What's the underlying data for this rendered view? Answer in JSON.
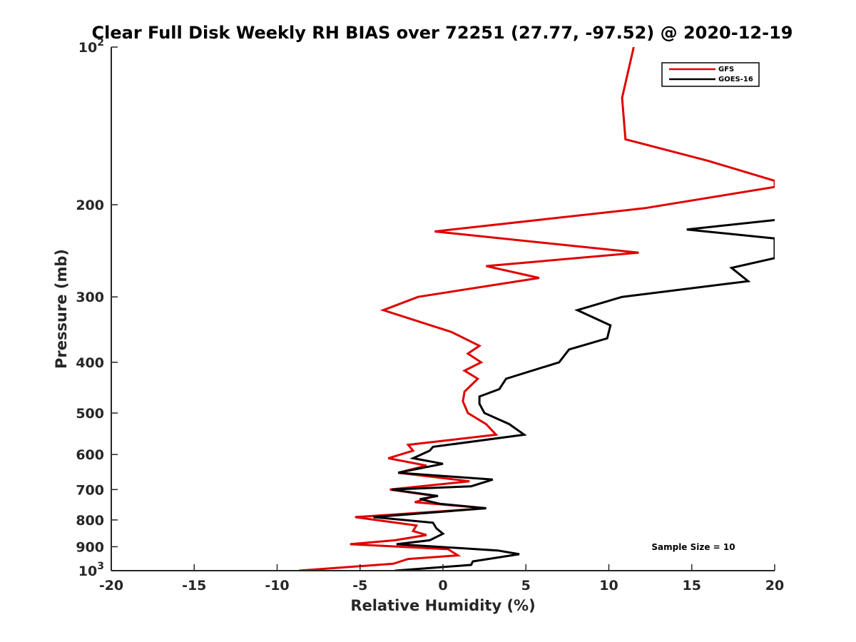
{
  "chart_data": {
    "type": "line",
    "title": "Clear Full Disk Weekly RH BIAS over 72251 (27.77, -97.52) @ 2020-12-19",
    "xlabel": "Relative Humidity (%)",
    "ylabel": "Pressure (mb)",
    "xlim": [
      -20,
      20
    ],
    "ylim": [
      100,
      1000
    ],
    "y_scale": "log",
    "y_reversed": true,
    "x_ticks": [
      -20,
      -15,
      -10,
      -5,
      0,
      5,
      10,
      15,
      20
    ],
    "x_tick_labels": [
      "-20",
      "-15",
      "-10",
      "-5",
      "0",
      "5",
      "10",
      "15",
      "20"
    ],
    "y_ticks": [
      100,
      200,
      300,
      400,
      500,
      600,
      700,
      800,
      900,
      1000
    ],
    "y_tick_labels": [
      {
        "base": "10",
        "exp": "2"
      },
      {
        "base": "200",
        "exp": ""
      },
      {
        "base": "300",
        "exp": ""
      },
      {
        "base": "400",
        "exp": ""
      },
      {
        "base": "500",
        "exp": ""
      },
      {
        "base": "600",
        "exp": ""
      },
      {
        "base": "700",
        "exp": ""
      },
      {
        "base": "800",
        "exp": ""
      },
      {
        "base": "900",
        "exp": ""
      },
      {
        "base": "10",
        "exp": "3"
      }
    ],
    "grid": false,
    "legend_position": "top-right",
    "annotation": "Sample Size = 10",
    "series": [
      {
        "name": "GFS",
        "color": "#e00000",
        "points": [
          [
            11.5,
            100
          ],
          [
            10.8,
            125
          ],
          [
            11.0,
            150
          ],
          [
            16.0,
            165
          ],
          [
            20.0,
            180
          ],
          [
            20.0,
            185
          ],
          [
            12.2,
            203
          ],
          [
            -0.5,
            225
          ],
          [
            11.8,
            247
          ],
          [
            2.6,
            262
          ],
          [
            5.8,
            276
          ],
          [
            -1.5,
            300
          ],
          [
            -3.6,
            318
          ],
          [
            0.5,
            350
          ],
          [
            2.2,
            372
          ],
          [
            1.5,
            385
          ],
          [
            2.3,
            400
          ],
          [
            1.3,
            415
          ],
          [
            2.1,
            430
          ],
          [
            1.3,
            455
          ],
          [
            1.2,
            475
          ],
          [
            1.5,
            500
          ],
          [
            2.6,
            525
          ],
          [
            3.2,
            550
          ],
          [
            -2.1,
            575
          ],
          [
            -1.8,
            590
          ],
          [
            -3.3,
            610
          ],
          [
            -1.0,
            630
          ],
          [
            -2.7,
            650
          ],
          [
            1.6,
            675
          ],
          [
            -3.2,
            700
          ],
          [
            -0.5,
            720
          ],
          [
            -1.7,
            740
          ],
          [
            2.6,
            760
          ],
          [
            -5.3,
            790
          ],
          [
            -1.6,
            820
          ],
          [
            -1.8,
            840
          ],
          [
            -1.0,
            855
          ],
          [
            -2.9,
            875
          ],
          [
            -5.6,
            890
          ],
          [
            0.3,
            910
          ],
          [
            0.9,
            935
          ],
          [
            -2.1,
            950
          ],
          [
            -3.0,
            970
          ],
          [
            -8.7,
            1000
          ]
        ]
      },
      {
        "name": "GOES-16",
        "color": "#000000",
        "points": [
          [
            20.0,
            214
          ],
          [
            14.7,
            223
          ],
          [
            20.0,
            232
          ],
          [
            20.0,
            253
          ],
          [
            17.4,
            264
          ],
          [
            18.4,
            280
          ],
          [
            10.8,
            300
          ],
          [
            8.1,
            318
          ],
          [
            10.1,
            340
          ],
          [
            9.9,
            360
          ],
          [
            7.6,
            378
          ],
          [
            7.0,
            400
          ],
          [
            3.8,
            430
          ],
          [
            3.4,
            450
          ],
          [
            2.2,
            465
          ],
          [
            2.2,
            480
          ],
          [
            2.5,
            500
          ],
          [
            4.0,
            525
          ],
          [
            4.9,
            550
          ],
          [
            -0.6,
            580
          ],
          [
            -0.8,
            590
          ],
          [
            -1.8,
            610
          ],
          [
            0.0,
            625
          ],
          [
            -2.7,
            650
          ],
          [
            3.0,
            670
          ],
          [
            1.7,
            690
          ],
          [
            -3.1,
            700
          ],
          [
            -0.3,
            720
          ],
          [
            -1.4,
            730
          ],
          [
            -0.2,
            745
          ],
          [
            2.6,
            760
          ],
          [
            -4.2,
            790
          ],
          [
            -0.6,
            810
          ],
          [
            -0.4,
            830
          ],
          [
            0.0,
            850
          ],
          [
            -0.8,
            875
          ],
          [
            -2.8,
            890
          ],
          [
            3.3,
            915
          ],
          [
            4.6,
            930
          ],
          [
            1.8,
            960
          ],
          [
            1.7,
            975
          ],
          [
            -2.9,
            1000
          ]
        ]
      }
    ]
  }
}
